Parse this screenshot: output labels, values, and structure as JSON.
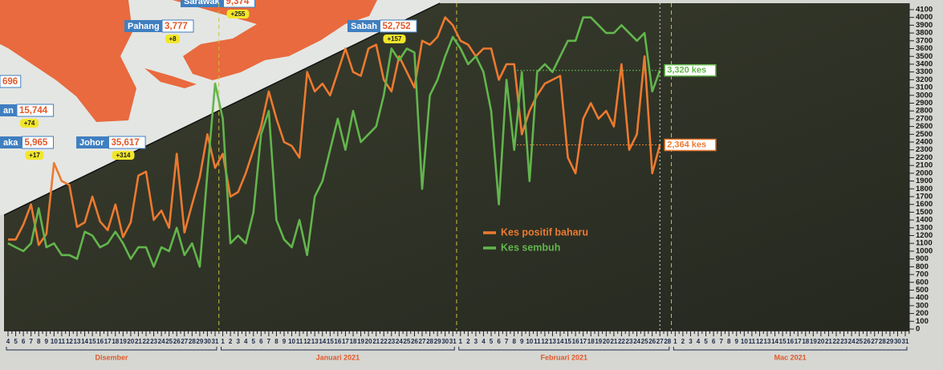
{
  "chart_data": {
    "type": "line",
    "categories": [
      "4",
      "5",
      "6",
      "7",
      "8",
      "9",
      "10",
      "11",
      "12",
      "13",
      "14",
      "15",
      "16",
      "17",
      "18",
      "19",
      "20",
      "21",
      "22",
      "23",
      "24",
      "25",
      "26",
      "27",
      "28",
      "29",
      "30",
      "31",
      "1",
      "2",
      "3",
      "4",
      "5",
      "6",
      "7",
      "8",
      "9",
      "10",
      "11",
      "12",
      "13",
      "14",
      "15",
      "16",
      "17",
      "18",
      "19",
      "20",
      "21",
      "22",
      "23",
      "24",
      "25",
      "26",
      "27",
      "28",
      "29",
      "30",
      "31",
      "1",
      "2",
      "3",
      "4",
      "5",
      "6",
      "7",
      "8",
      "9",
      "10",
      "11",
      "12",
      "13",
      "14",
      "15",
      "16",
      "17",
      "18",
      "19",
      "20",
      "21",
      "22",
      "23",
      "24",
      "25",
      "26",
      "27",
      "28",
      "1",
      "2",
      "3",
      "4",
      "5",
      "6",
      "7",
      "8",
      "9",
      "10",
      "11",
      "12",
      "13",
      "14",
      "15",
      "16",
      "17",
      "18",
      "19",
      "20",
      "21",
      "22",
      "23",
      "24",
      "25",
      "26",
      "27",
      "28",
      "29",
      "30",
      "31"
    ],
    "months": [
      "Disember",
      "Januari 2021",
      "Februari 2021",
      "Mac 2021"
    ],
    "series": [
      {
        "name": "Kes positif baharu",
        "color": "#ec7a30",
        "end_label": "2,364 kes",
        "values": [
          1150,
          1150,
          1340,
          1600,
          1080,
          1220,
          2130,
          1900,
          1850,
          1310,
          1370,
          1700,
          1380,
          1270,
          1600,
          1180,
          1370,
          1970,
          2020,
          1400,
          1520,
          1300,
          2250,
          1240,
          1600,
          1950,
          2500,
          2070,
          2250,
          1700,
          1760,
          2000,
          2300,
          2600,
          3050,
          2700,
          2400,
          2350,
          2200,
          3300,
          3050,
          3150,
          3000,
          3300,
          3600,
          3300,
          3250,
          3600,
          3650,
          3200,
          3050,
          3500,
          3300,
          3100,
          3700,
          3650,
          3750,
          4000,
          3900,
          3700,
          3650,
          3500,
          3600,
          3600,
          3200,
          3400,
          3400,
          2500,
          2800,
          3000,
          3150,
          3200,
          3250,
          2200,
          2000,
          2700,
          2900,
          2700,
          2800,
          2600,
          3400,
          2300,
          2500,
          3500,
          2000,
          2364,
          null,
          null,
          null,
          null,
          null,
          null,
          null,
          null,
          null,
          null,
          null,
          null,
          null,
          null,
          null,
          null,
          null,
          null,
          null,
          null,
          null,
          null,
          null,
          null,
          null,
          null,
          null,
          null,
          null,
          null,
          null,
          null
        ]
      },
      {
        "name": "Kes sembuh",
        "color": "#63b54d",
        "end_label": "3,320 kes",
        "values": [
          1100,
          1050,
          1000,
          1100,
          1550,
          1050,
          1100,
          950,
          950,
          900,
          1250,
          1200,
          1050,
          1100,
          1250,
          1100,
          900,
          1050,
          1050,
          800,
          1050,
          1000,
          1300,
          950,
          1100,
          800,
          2000,
          3150,
          2700,
          1100,
          1200,
          1100,
          1500,
          2500,
          2800,
          1400,
          1150,
          1050,
          1400,
          950,
          1700,
          1900,
          2300,
          2700,
          2300,
          2800,
          2400,
          2500,
          2600,
          3000,
          3600,
          3450,
          3600,
          3550,
          1800,
          3000,
          3200,
          3500,
          3750,
          3600,
          3400,
          3500,
          3300,
          2800,
          1600,
          3200,
          2300,
          3300,
          1900,
          3300,
          3400,
          3300,
          3500,
          3700,
          3700,
          4000,
          4000,
          3900,
          3800,
          3800,
          3900,
          3800,
          3700,
          3800,
          3050,
          3320,
          null,
          null,
          null,
          null,
          null,
          null,
          null,
          null,
          null,
          null,
          null,
          null,
          null,
          null,
          null,
          null,
          null,
          null,
          null,
          null,
          null,
          null,
          null,
          null,
          null,
          null,
          null,
          null,
          null,
          null,
          null,
          null
        ]
      }
    ],
    "ylim": [
      0,
      4100
    ],
    "yticks": [
      0,
      100,
      200,
      300,
      400,
      500,
      600,
      700,
      800,
      900,
      1000,
      1100,
      1200,
      1300,
      1400,
      1500,
      1600,
      1700,
      1800,
      1900,
      2000,
      2100,
      2200,
      2300,
      2400,
      2500,
      2600,
      2700,
      2800,
      2900,
      3000,
      3100,
      3200,
      3300,
      3400,
      3500,
      3600,
      3700,
      3800,
      3900,
      4000,
      4100
    ],
    "grid": false,
    "legend": "center"
  },
  "map_inset": {
    "labels": [
      {
        "name": "Sarawak",
        "total": "9,374",
        "new": "+255"
      },
      {
        "name": "Pahang",
        "total": "3,777",
        "new": "+8"
      },
      {
        "name": "Sabah",
        "total": "52,752",
        "new": "+157"
      },
      {
        "name": "Johor",
        "total": "35,617",
        "new": "+314"
      },
      {
        "name": "aka",
        "total": "5,965",
        "new": "+17"
      },
      {
        "name": "an",
        "total": "15,744",
        "new": "+74"
      },
      {
        "total": "696"
      }
    ]
  }
}
